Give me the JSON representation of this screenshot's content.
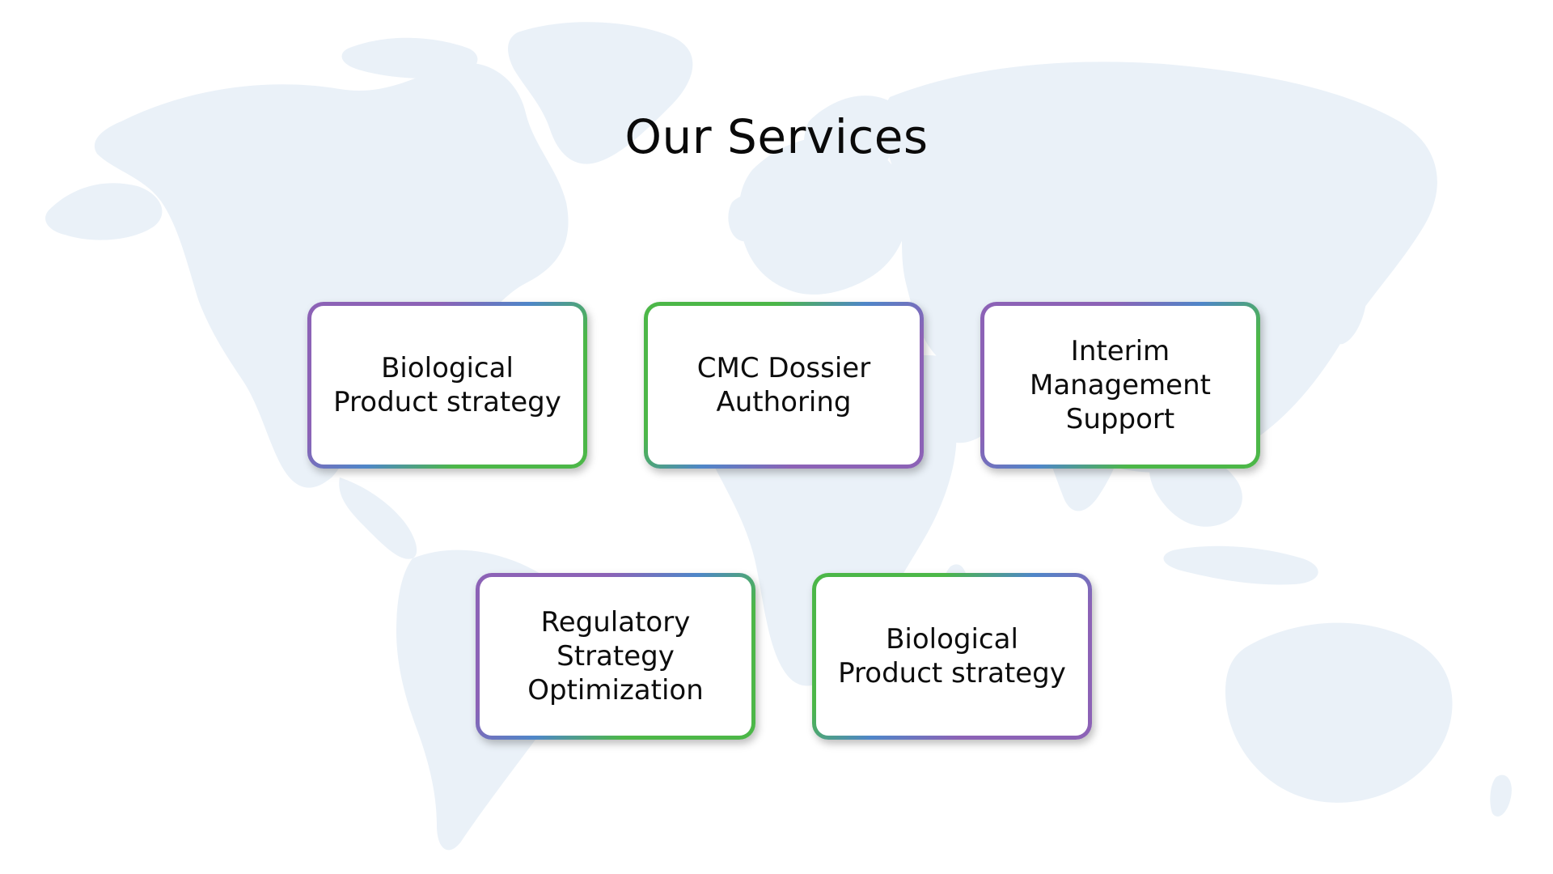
{
  "title": "Our Services",
  "services": [
    {
      "label": "Biological\nProduct strategy",
      "border_style": "purple-to-green"
    },
    {
      "label": "CMC Dossier\nAuthoring",
      "border_style": "green-to-purple"
    },
    {
      "label": "Interim\nManagement\nSupport",
      "border_style": "purple-to-green"
    },
    {
      "label": "Regulatory\nStrategy\nOptimization",
      "border_style": "purple-to-green"
    },
    {
      "label": "Biological\nProduct strategy",
      "border_style": "green-to-purple"
    }
  ],
  "background": {
    "image": "world-map",
    "map_color": "#eaf1f8"
  },
  "colors": {
    "purple": "#8c62b6",
    "green": "#4cb748",
    "blue": "#4f86c8"
  }
}
